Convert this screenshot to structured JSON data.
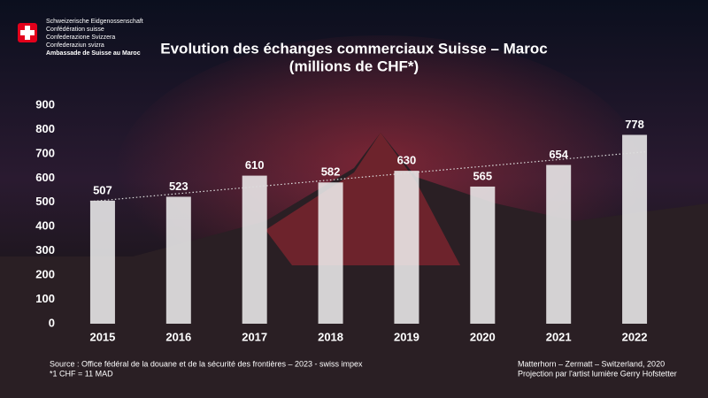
{
  "header": {
    "lines": [
      "Schweizerische Eidgenossenschaft",
      "Confédération suisse",
      "Confederazione Svizzera",
      "Confederaziun svizra"
    ],
    "embassy": "Ambassade de Suisse au Maroc"
  },
  "chart_data": {
    "type": "bar",
    "title": "Evolution des échanges commerciaux Suisse – Maroc",
    "subtitle": "(millions de CHF*)",
    "categories": [
      "2015",
      "2016",
      "2017",
      "2018",
      "2019",
      "2020",
      "2021",
      "2022"
    ],
    "values": [
      507,
      523,
      610,
      582,
      630,
      565,
      654,
      778
    ],
    "color": "#f2f2f2",
    "ylim": [
      0,
      900
    ],
    "yticks": [
      0,
      100,
      200,
      300,
      400,
      500,
      600,
      700,
      800,
      900
    ],
    "grid": false,
    "trendline": true
  },
  "footer": {
    "source": [
      "Source : Office fédéral de la douane et de la sécurité des frontières – 2023 - swiss impex",
      "*1 CHF = 11 MAD"
    ],
    "credits": [
      "Matterhorn – Zermatt – Switzerland, 2020",
      "Projection par l'artist lumière Gerry Hofstetter"
    ]
  }
}
